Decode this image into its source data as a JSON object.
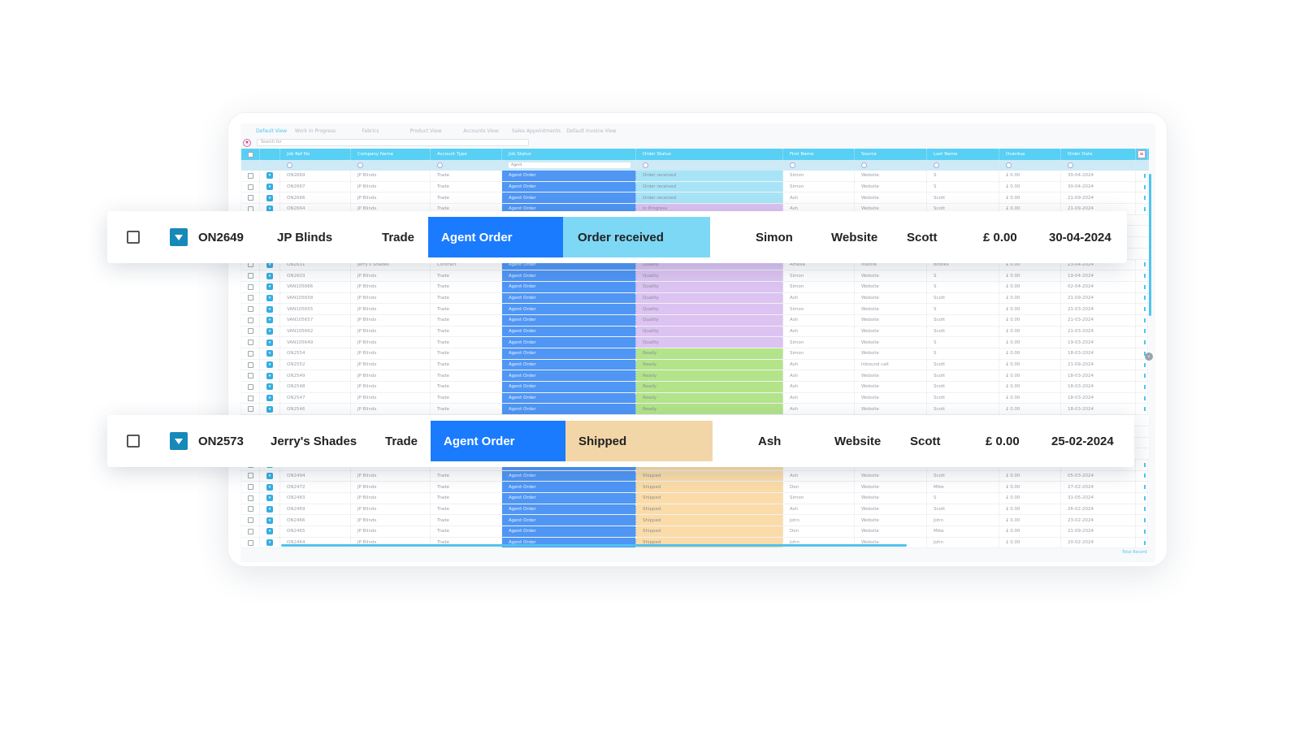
{
  "tabs": [
    "Default View",
    "Work In Progress",
    "Fabrics",
    "Product View",
    "Accounts View",
    "Sales Appointments",
    "Default Invoice View"
  ],
  "search": {
    "placeholder": "Search for"
  },
  "columns": [
    "Job Ref No",
    "Company Name",
    "Account Type",
    "Job Status",
    "Order Status",
    "First Name",
    "Source",
    "Last Name",
    "Overdue",
    "Order Date"
  ],
  "job_status_filter": "Agent",
  "status_colors": {
    "Order received": "#a8e4f7",
    "In Progress": "#dcc3f2",
    "Quality": "#dcc3f2",
    "Ready": "#b3e48a",
    "Shipped": "#fbdca8"
  },
  "rows": [
    [
      "ON2669",
      "JP Blinds",
      "Trade",
      "Agent Order",
      "Order received",
      "Simon",
      "Website",
      "S",
      "£ 0.00",
      "30-04-2024"
    ],
    [
      "ON2667",
      "JP Blinds",
      "Trade",
      "Agent Order",
      "Order received",
      "Simon",
      "Website",
      "S",
      "£ 0.00",
      "30-04-2024"
    ],
    [
      "ON2666",
      "JP Blinds",
      "Trade",
      "Agent Order",
      "Order received",
      "Ash",
      "Website",
      "Scott",
      "£ 0.00",
      "21-09-2024"
    ],
    [
      "ON2664",
      "JP Blinds",
      "Trade",
      "Agent Order",
      "In Progress",
      "Ash",
      "Website",
      "Scott",
      "£ 0.00",
      "21-09-2024"
    ],
    [
      "ON2631",
      "Jerry's Shades",
      "Contract",
      "Agent Order",
      "Quality",
      "Amelia",
      "Instore",
      "Brooks",
      "£ 0.00",
      "23-04-2024"
    ],
    [
      "ON2603",
      "JP Blinds",
      "Trade",
      "Agent Order",
      "Quality",
      "Simon",
      "Website",
      "S",
      "£ 0.00",
      "19-04-2024"
    ],
    [
      "VAN105666",
      "JP Blinds",
      "Trade",
      "Agent Order",
      "Quality",
      "Simon",
      "Website",
      "S",
      "£ 0.00",
      "02-04-2024"
    ],
    [
      "VAN105658",
      "JP Blinds",
      "Trade",
      "Agent Order",
      "Quality",
      "Ash",
      "Website",
      "Scott",
      "£ 0.00",
      "21-09-2024"
    ],
    [
      "VAN105655",
      "JP Blinds",
      "Trade",
      "Agent Order",
      "Quality",
      "Simon",
      "Website",
      "S",
      "£ 0.00",
      "21-03-2024"
    ],
    [
      "VAN105657",
      "JP Blinds",
      "Trade",
      "Agent Order",
      "Quality",
      "Ash",
      "Website",
      "Scott",
      "£ 0.00",
      "21-03-2024"
    ],
    [
      "VAN105662",
      "JP Blinds",
      "Trade",
      "Agent Order",
      "Quality",
      "Ash",
      "Website",
      "Scott",
      "£ 0.00",
      "21-03-2024"
    ],
    [
      "VAN105649",
      "JP Blinds",
      "Trade",
      "Agent Order",
      "Quality",
      "Simon",
      "Website",
      "S",
      "£ 0.00",
      "19-03-2024"
    ],
    [
      "ON2554",
      "JP Blinds",
      "Trade",
      "Agent Order",
      "Ready",
      "Simon",
      "Website",
      "S",
      "£ 0.00",
      "18-03-2024"
    ],
    [
      "ON2552",
      "JP Blinds",
      "Trade",
      "Agent Order",
      "Ready",
      "Ash",
      "Inbound call",
      "Scott",
      "£ 0.00",
      "21-09-2024"
    ],
    [
      "ON2549",
      "JP Blinds",
      "Trade",
      "Agent Order",
      "Ready",
      "Ash",
      "Website",
      "Scott",
      "£ 0.00",
      "18-03-2024"
    ],
    [
      "ON2548",
      "JP Blinds",
      "Trade",
      "Agent Order",
      "Ready",
      "Ash",
      "Website",
      "Scott",
      "£ 0.00",
      "18-03-2024"
    ],
    [
      "ON2547",
      "JP Blinds",
      "Trade",
      "Agent Order",
      "Ready",
      "Ash",
      "Website",
      "Scott",
      "£ 0.00",
      "18-03-2024"
    ],
    [
      "ON2546",
      "JP Blinds",
      "Trade",
      "Agent Order",
      "Ready",
      "Ash",
      "Website",
      "Scott",
      "£ 0.00",
      "18-03-2024"
    ],
    [
      "ON2501",
      "JP Blinds",
      "Trade",
      "Agent Order",
      "Shipped",
      "Simon",
      "Website",
      "S",
      "£ 0.00",
      "05-03-2024"
    ],
    [
      "ON2494",
      "JP Blinds",
      "Trade",
      "Agent Order",
      "Shipped",
      "Ash",
      "Website",
      "Scott",
      "£ 0.00",
      "05-03-2024"
    ],
    [
      "ON2472",
      "JP Blinds",
      "Trade",
      "Agent Order",
      "Shipped",
      "Don",
      "Website",
      "Mike",
      "£ 0.00",
      "27-02-2024"
    ],
    [
      "ON2483",
      "JP Blinds",
      "Trade",
      "Agent Order",
      "Shipped",
      "Simon",
      "Website",
      "S",
      "£ 0.00",
      "31-05-2024"
    ],
    [
      "ON2469",
      "JP Blinds",
      "Trade",
      "Agent Order",
      "Shipped",
      "Ash",
      "Website",
      "Scott",
      "£ 0.00",
      "26-02-2024"
    ],
    [
      "ON2466",
      "JP Blinds",
      "Trade",
      "Agent Order",
      "Shipped",
      "John",
      "Website",
      "John",
      "£ 0.00",
      "23-02-2024"
    ],
    [
      "ON2465",
      "JP Blinds",
      "Trade",
      "Agent Order",
      "Shipped",
      "Don",
      "Website",
      "Mike",
      "£ 0.00",
      "21-09-2024"
    ],
    [
      "ON2464",
      "JP Blinds",
      "Trade",
      "Agent Order",
      "Shipped",
      "John",
      "Website",
      "John",
      "£ 0.00",
      "20-02-2024"
    ]
  ],
  "total_record": "Total Record",
  "highlight_cards": [
    {
      "ref": "ON2649",
      "company": "JP Blinds",
      "account": "Trade",
      "job_status": "Agent Order",
      "order_status": "Order received",
      "first": "Simon",
      "source": "Website",
      "last": "Scott",
      "overdue": "£ 0.00",
      "date": "30-04-2024",
      "job_color": "#1a7bff",
      "status_color": "#7dd8f5"
    },
    {
      "ref": "ON2573",
      "company": "Jerry's Shades",
      "account": "Trade",
      "job_status": "Agent Order",
      "order_status": "Shipped",
      "first": "Ash",
      "source": "Website",
      "last": "Scott",
      "overdue": "£ 0.00",
      "date": "25-02-2024",
      "job_color": "#1a7bff",
      "status_color": "#f2d6a8"
    }
  ]
}
